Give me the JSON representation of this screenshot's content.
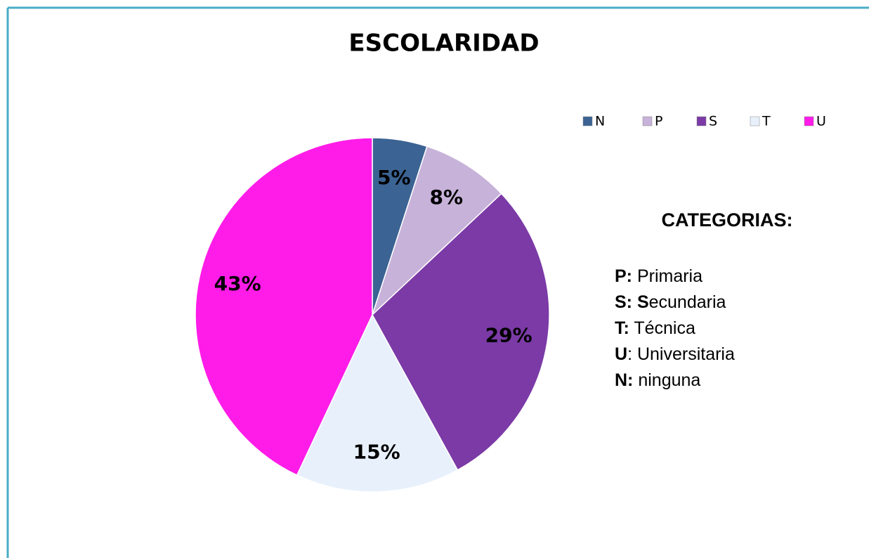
{
  "chart_data": {
    "type": "pie",
    "title": "ESCOLARIDAD",
    "categories": [
      "N",
      "P",
      "S",
      "T",
      "U"
    ],
    "values": [
      5,
      8,
      29,
      15,
      43
    ],
    "value_labels": [
      "5%",
      "8%",
      "29%",
      "15%",
      "43%"
    ],
    "colors": [
      "#3b6393",
      "#c7b2d9",
      "#7b3aa6",
      "#e8f1fb",
      "#ff1ce8"
    ],
    "legend": "top-right",
    "annotation": {
      "heading": "CATEGORIAS:",
      "items": [
        {
          "bold": "P:",
          "regular": " Primaria"
        },
        {
          "bold": "S: S",
          "regular": "ecundaria"
        },
        {
          "bold": "T:",
          "regular": " Técnica"
        },
        {
          "bold": "U",
          "regular": ": Universitaria"
        },
        {
          "bold": "N:",
          "regular": " ninguna"
        }
      ]
    }
  }
}
